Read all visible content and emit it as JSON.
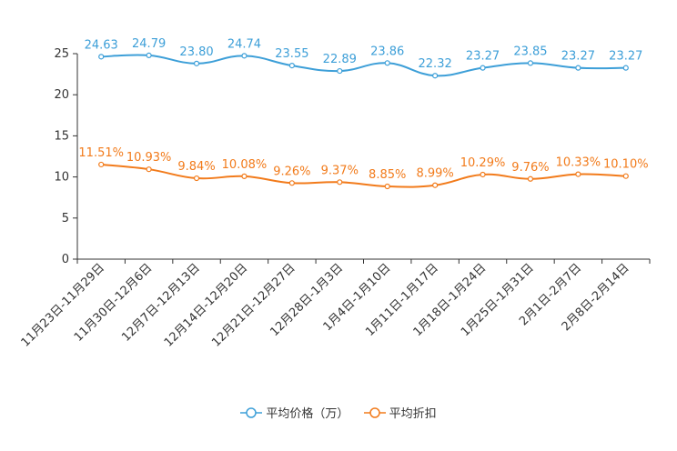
{
  "chart_data": {
    "type": "line",
    "categories": [
      "11月23日-11月29日",
      "11月30日-12月6日",
      "12月7日-12月13日",
      "12月14日-12月20日",
      "12月21日-12月27日",
      "12月28日-1月3日",
      "1月4日-1月10日",
      "1月11日-1月17日",
      "1月18日-1月24日",
      "1月25日-1月31日",
      "2月1日-2月7日",
      "2月8日-2月14日"
    ],
    "ylim": [
      0,
      25
    ],
    "yticks": [
      0,
      5,
      10,
      15,
      20,
      25
    ],
    "series": [
      {
        "name": "平均价格（万）",
        "color": "#3d9fd8",
        "values": [
          24.63,
          24.79,
          23.8,
          24.74,
          23.55,
          22.89,
          23.86,
          22.32,
          23.27,
          23.85,
          23.27,
          23.27
        ],
        "labels": [
          "24.63",
          "24.79",
          "23.80",
          "24.74",
          "23.55",
          "22.89",
          "23.86",
          "22.32",
          "23.27",
          "23.85",
          "23.27",
          "23.27"
        ]
      },
      {
        "name": "平均折扣",
        "color": "#f27b1b",
        "values": [
          11.51,
          10.93,
          9.84,
          10.08,
          9.26,
          9.37,
          8.85,
          8.99,
          10.29,
          9.76,
          10.33,
          10.1
        ],
        "labels": [
          "11.51%",
          "10.93%",
          "9.84%",
          "10.08%",
          "9.26%",
          "9.37%",
          "8.85%",
          "8.99%",
          "10.29%",
          "9.76%",
          "10.33%",
          "10.10%"
        ]
      }
    ],
    "legend_position": "bottom"
  },
  "legend": {
    "items": [
      "平均价格（万）",
      "平均折扣"
    ]
  }
}
